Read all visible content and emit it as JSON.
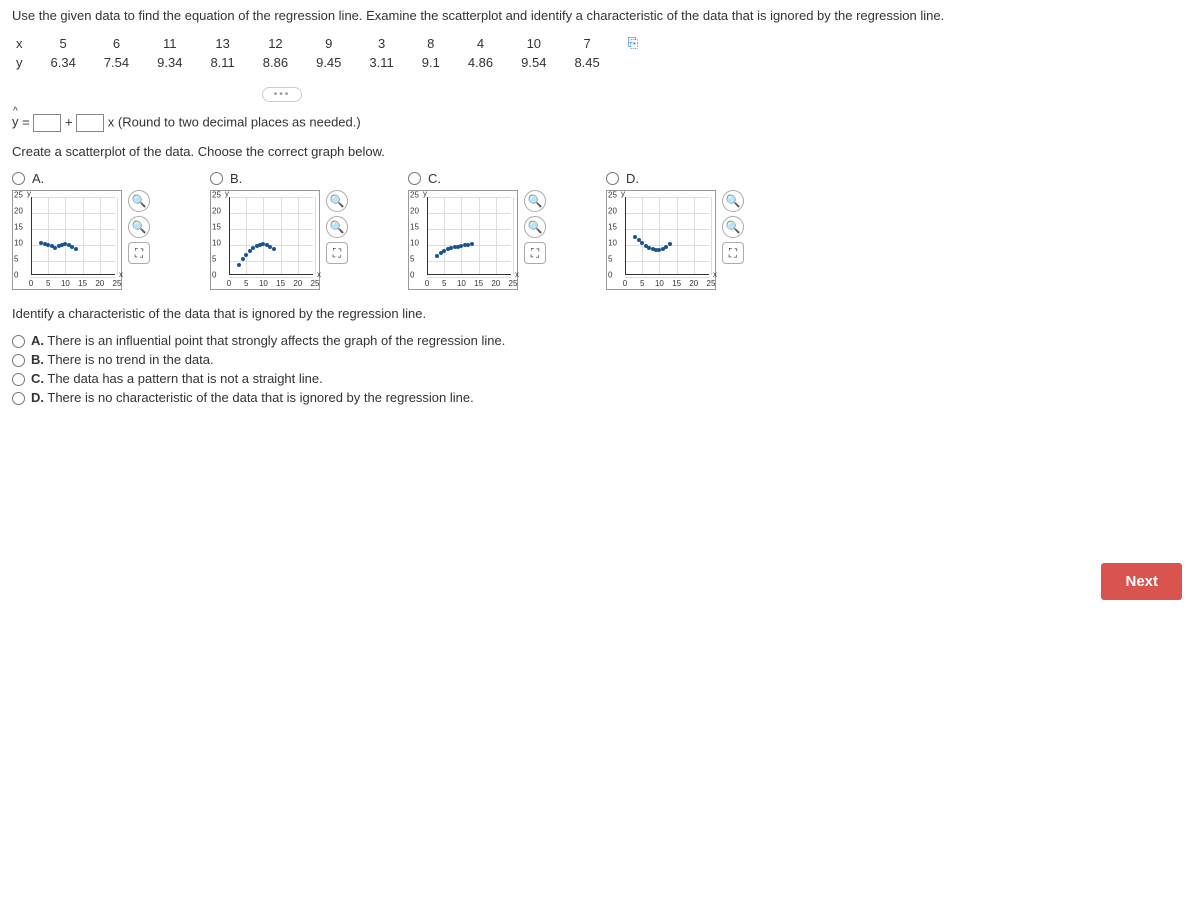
{
  "instruction": "Use the given data to find the equation of the regression line. Examine the scatterplot and identify a characteristic of the data that is ignored by the regression line.",
  "table": {
    "row_labels": [
      "x",
      "y"
    ],
    "x": [
      5,
      6,
      11,
      13,
      12,
      9,
      3,
      8,
      4,
      10,
      7
    ],
    "y": [
      6.34,
      7.54,
      9.34,
      8.11,
      8.86,
      9.45,
      3.11,
      9.1,
      4.86,
      9.54,
      8.45
    ]
  },
  "equation": {
    "prefix": "ŷ = ",
    "plus": " + ",
    "suffix": "x (Round to two decimal places as needed.)"
  },
  "subq1": "Create a scatterplot of the data. Choose the correct graph below.",
  "charts": {
    "options": [
      "A.",
      "B.",
      "C.",
      "D."
    ],
    "y_ticks": [
      0,
      5,
      10,
      15,
      20,
      25
    ],
    "x_ticks": [
      0,
      5,
      10,
      15,
      20,
      25
    ],
    "y_title": "y",
    "x_title": "x",
    "grid_color": "#dddddd",
    "point_color": "#1a5490",
    "A": {
      "points": [
        [
          3,
          10.0
        ],
        [
          4,
          9.7
        ],
        [
          5,
          9.4
        ],
        [
          6,
          9.1
        ],
        [
          7,
          8.45
        ],
        [
          8,
          9.1
        ],
        [
          9,
          9.45
        ],
        [
          10,
          9.54
        ],
        [
          11,
          9.34
        ],
        [
          12,
          8.86
        ],
        [
          13,
          8.11
        ]
      ]
    },
    "B": {
      "points": [
        [
          3,
          3.11
        ],
        [
          4,
          4.86
        ],
        [
          5,
          6.34
        ],
        [
          6,
          7.54
        ],
        [
          7,
          8.45
        ],
        [
          8,
          9.1
        ],
        [
          9,
          9.45
        ],
        [
          10,
          9.54
        ],
        [
          11,
          9.34
        ],
        [
          12,
          8.86
        ],
        [
          13,
          8.11
        ]
      ]
    },
    "C": {
      "points": [
        [
          3,
          6
        ],
        [
          4,
          7
        ],
        [
          5,
          7.5
        ],
        [
          6,
          8
        ],
        [
          7,
          8.3
        ],
        [
          8,
          8.6
        ],
        [
          9,
          8.9
        ],
        [
          10,
          9.1
        ],
        [
          11,
          9.3
        ],
        [
          12,
          9.5
        ],
        [
          13,
          9.7
        ]
      ]
    },
    "D": {
      "points": [
        [
          3,
          12
        ],
        [
          4,
          11
        ],
        [
          5,
          10
        ],
        [
          6,
          9.2
        ],
        [
          7,
          8.45
        ],
        [
          8,
          8.0
        ],
        [
          9,
          7.8
        ],
        [
          10,
          7.9
        ],
        [
          11,
          8.2
        ],
        [
          12,
          8.8
        ],
        [
          13,
          9.6
        ]
      ]
    }
  },
  "subq2": "Identify a characteristic of the data that is ignored by the regression line.",
  "mc": {
    "A": "There is an influential point that strongly affects the graph of the regression line.",
    "B": "There is no trend in the data.",
    "C": "The data has a pattern that is not a straight line.",
    "D": "There is no characteristic of the data that is ignored by the regression line."
  },
  "next_label": "Next"
}
